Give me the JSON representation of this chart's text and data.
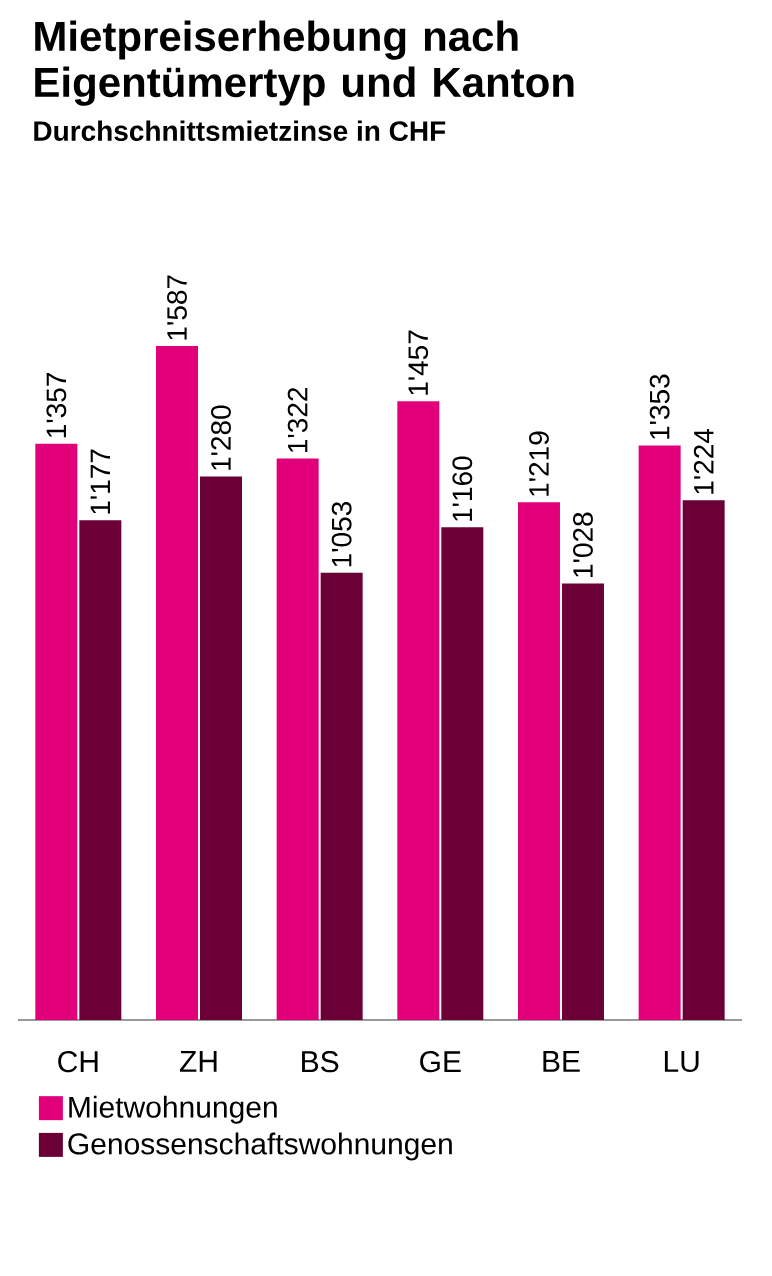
{
  "chart_data": {
    "type": "bar",
    "title": "Mietpreiserhebung nach Eigentümertyp und Kanton",
    "subtitle": "Durchschnittsmietzinse in CHF",
    "categories": [
      "CH",
      "ZH",
      "BS",
      "GE",
      "BE",
      "LU"
    ],
    "series": [
      {
        "name": "Mietwohnungen",
        "color": "#e2007a",
        "values": [
          1357,
          1587,
          1322,
          1457,
          1219,
          1353
        ],
        "value_labels": [
          "1'357",
          "1'587",
          "1'322",
          "1'457",
          "1'219",
          "1'353"
        ]
      },
      {
        "name": "Genossenschaftswohnungen",
        "color": "#6a0035",
        "values": [
          1177,
          1280,
          1053,
          1160,
          1028,
          1224
        ],
        "value_labels": [
          "1'177",
          "1'280",
          "1'053",
          "1'160",
          "1'028",
          "1'224"
        ]
      }
    ],
    "legend": "bottom",
    "tick_labels": "x"
  }
}
